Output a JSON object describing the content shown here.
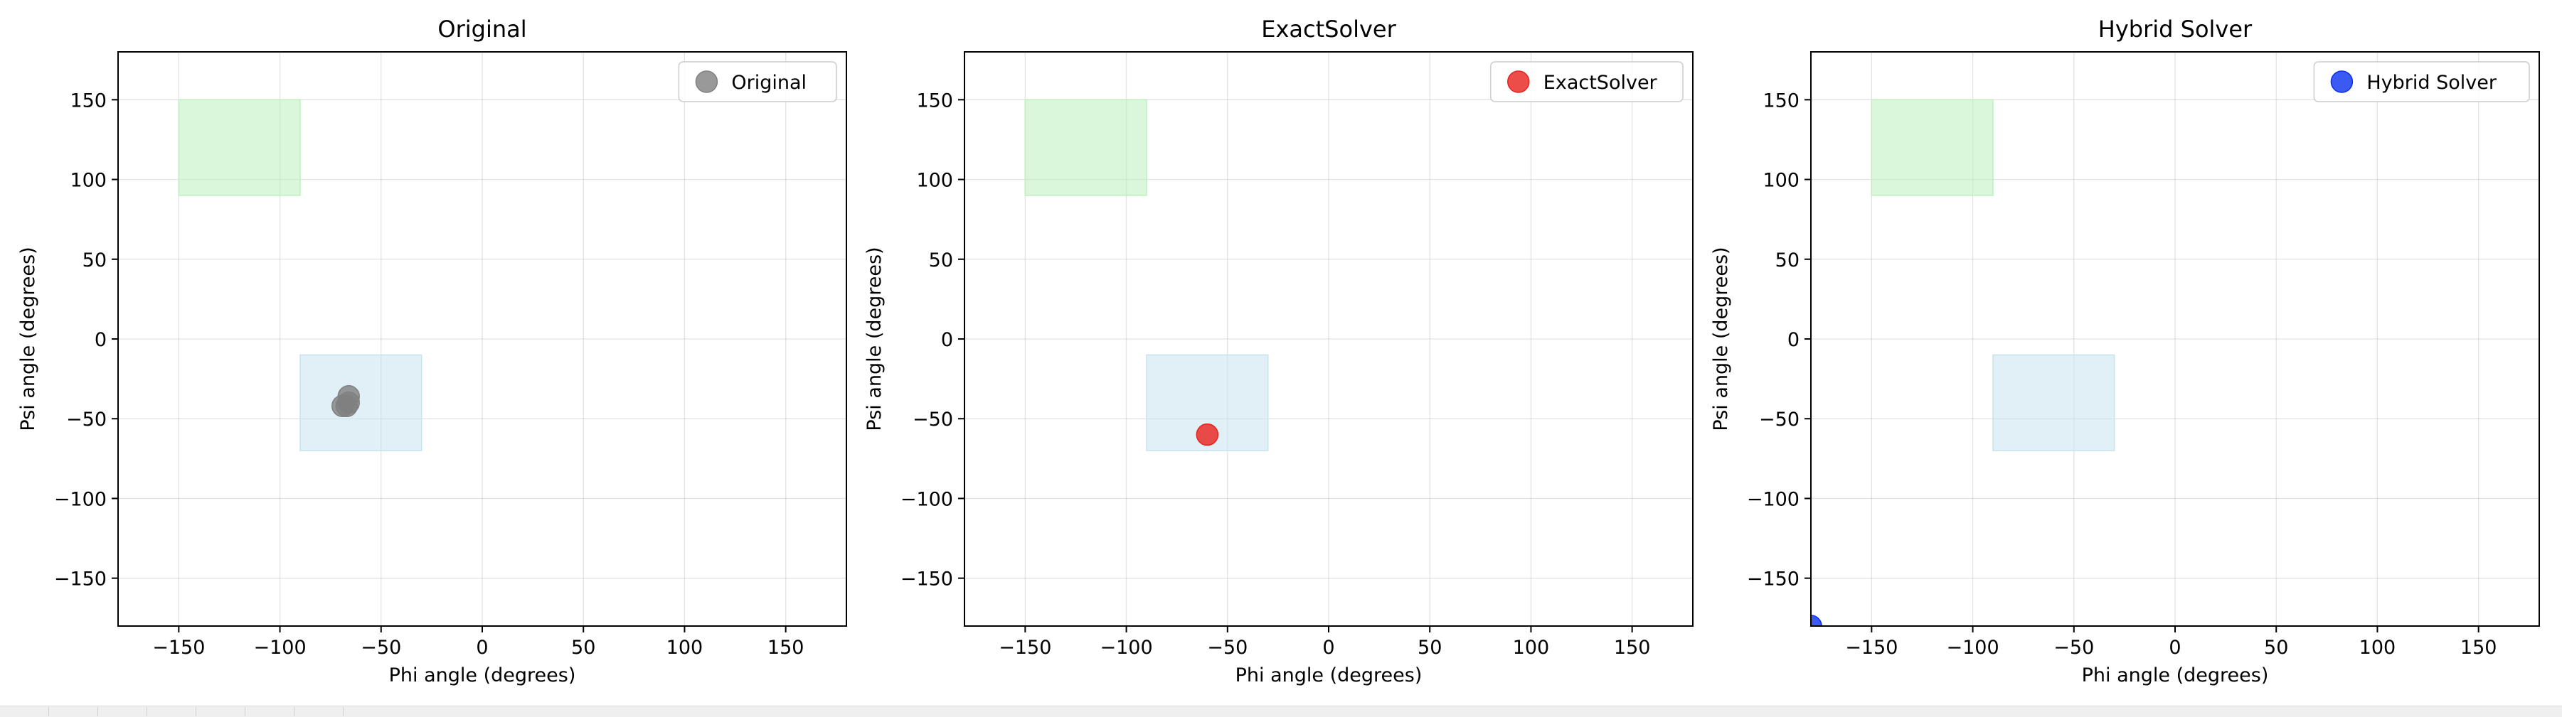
{
  "chart_data": [
    {
      "type": "scatter",
      "title": "Original",
      "xlabel": "Phi angle (degrees)",
      "ylabel": "Psi angle (degrees)",
      "xlim": [
        -180,
        180
      ],
      "ylim": [
        -180,
        180
      ],
      "xticks": [
        -150,
        -100,
        -50,
        0,
        50,
        100,
        150
      ],
      "yticks": [
        -150,
        -100,
        -50,
        0,
        50,
        100,
        150
      ],
      "grid": true,
      "legend_position": "top-right",
      "regions": [
        {
          "x": [
            -150,
            -90
          ],
          "y": [
            90,
            150
          ],
          "color": "#bdf0bd"
        },
        {
          "x": [
            -90,
            -30
          ],
          "y": [
            -70,
            -10
          ],
          "color": "#c6e3ee"
        }
      ],
      "series": [
        {
          "name": "Original",
          "color": "#808080",
          "points": [
            {
              "x": -66,
              "y": -36
            },
            {
              "x": -66,
              "y": -40
            },
            {
              "x": -67,
              "y": -42
            },
            {
              "x": -69,
              "y": -42
            }
          ]
        }
      ]
    },
    {
      "type": "scatter",
      "title": "ExactSolver",
      "xlabel": "Phi angle (degrees)",
      "ylabel": "Psi angle (degrees)",
      "xlim": [
        -180,
        180
      ],
      "ylim": [
        -180,
        180
      ],
      "xticks": [
        -150,
        -100,
        -50,
        0,
        50,
        100,
        150
      ],
      "yticks": [
        -150,
        -100,
        -50,
        0,
        50,
        100,
        150
      ],
      "grid": true,
      "legend_position": "top-right",
      "regions": [
        {
          "x": [
            -150,
            -90
          ],
          "y": [
            90,
            150
          ],
          "color": "#bdf0bd"
        },
        {
          "x": [
            -90,
            -30
          ],
          "y": [
            -70,
            -10
          ],
          "color": "#c6e3ee"
        }
      ],
      "series": [
        {
          "name": "ExactSolver",
          "color": "#e8211b",
          "points": [
            {
              "x": -60,
              "y": -60
            }
          ]
        }
      ]
    },
    {
      "type": "scatter",
      "title": "Hybrid Solver",
      "xlabel": "Phi angle (degrees)",
      "ylabel": "Psi angle (degrees)",
      "xlim": [
        -180,
        180
      ],
      "ylim": [
        -180,
        180
      ],
      "xticks": [
        -150,
        -100,
        -50,
        0,
        50,
        100,
        150
      ],
      "yticks": [
        -150,
        -100,
        -50,
        0,
        50,
        100,
        150
      ],
      "grid": true,
      "legend_position": "top-right",
      "regions": [
        {
          "x": [
            -150,
            -90
          ],
          "y": [
            90,
            150
          ],
          "color": "#bdf0bd"
        },
        {
          "x": [
            -90,
            -30
          ],
          "y": [
            -70,
            -10
          ],
          "color": "#c6e3ee"
        }
      ],
      "series": [
        {
          "name": "Hybrid Solver",
          "color": "#0a2ff0",
          "points": [
            {
              "x": -180,
              "y": -180
            }
          ]
        }
      ]
    }
  ]
}
